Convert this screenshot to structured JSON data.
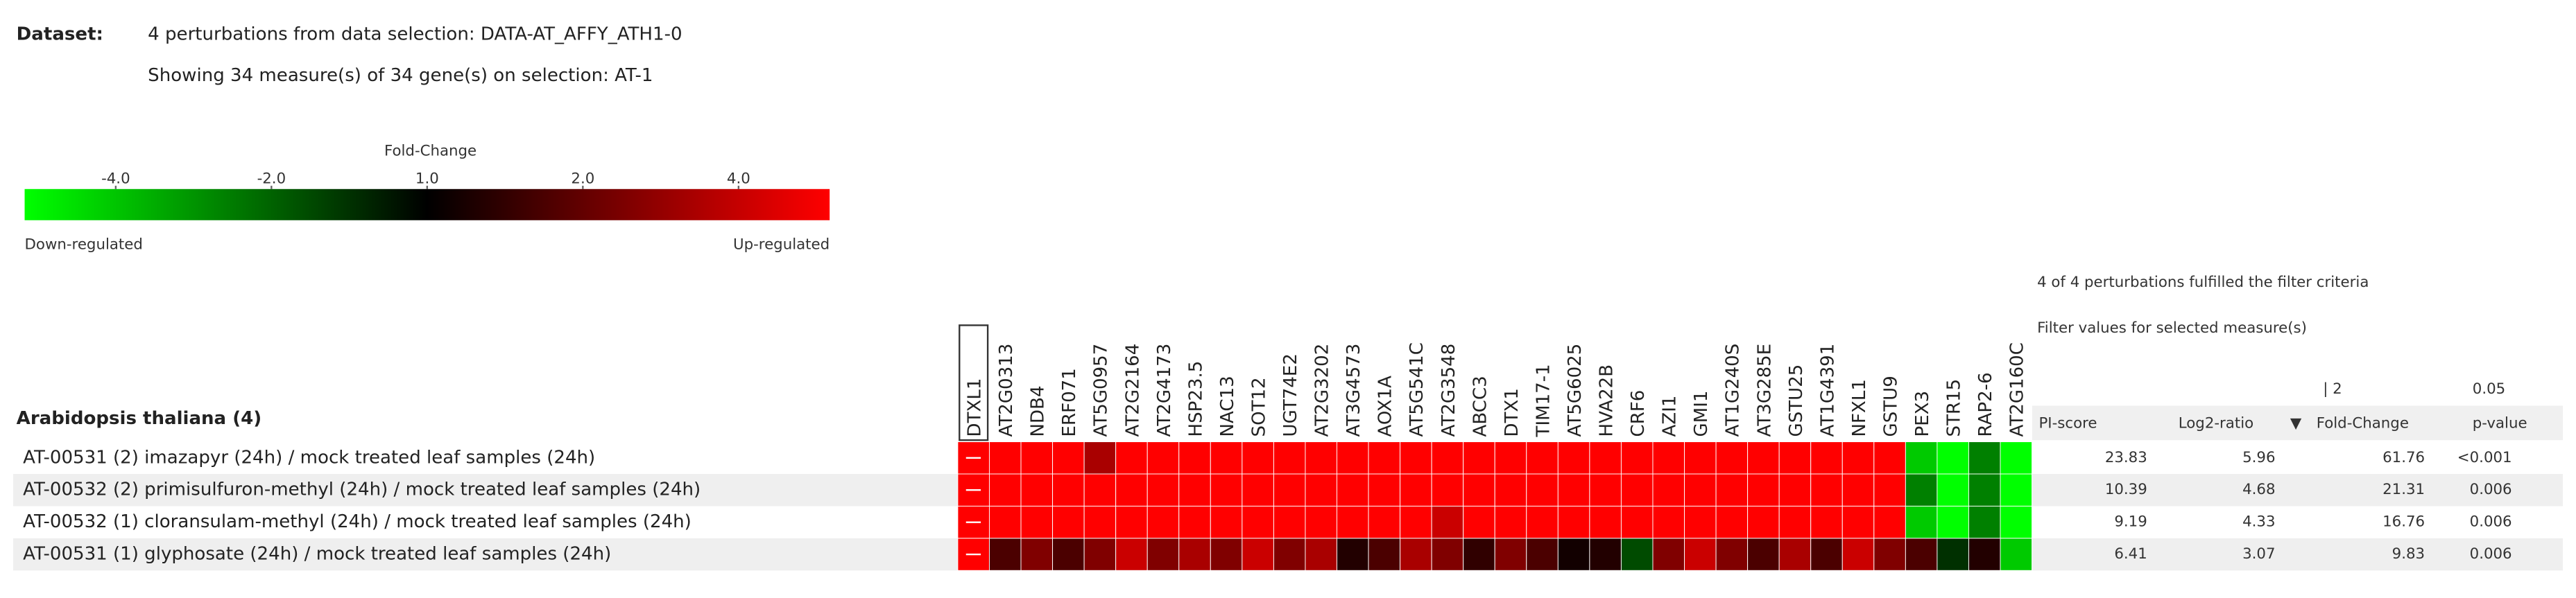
{
  "header": {
    "dataset_label": "Dataset:",
    "dataset_text": "4 perturbations from data selection: DATA-AT_AFFY_ATH1-0",
    "showing": "Showing 34 measure(s) of 34 gene(s) on selection: AT-1"
  },
  "legend": {
    "title": "Fold-Change",
    "lim": [
      -6,
      6
    ],
    "ticks": [
      {
        "value": -4,
        "label": "-4.0"
      },
      {
        "value": -2,
        "label": "-2.0"
      },
      {
        "value": 1,
        "label": "1.0"
      },
      {
        "value": 2,
        "label": "2.0"
      },
      {
        "value": 4,
        "label": "4.0"
      }
    ],
    "low_label": "Down-regulated",
    "high_label": "Up-regulated",
    "low_color": "#00ff00",
    "mid_color": "#000000",
    "high_color": "#ff0000"
  },
  "heatmap": {
    "group": "Arabidopsis thaliana (4)",
    "genes": [
      "DTXL1",
      "AT2G0313",
      "NDB4",
      "ERF071",
      "AT5G0957",
      "AT2G2164",
      "AT2G4173",
      "HSP23.5",
      "NAC13",
      "SOT12",
      "UGT74E2",
      "AT2G3202",
      "AT3G4573",
      "AOX1A",
      "AT5G541C",
      "AT2G3548",
      "ABCC3",
      "DTX1",
      "TIM17-1",
      "AT5G6025",
      "HVA22B",
      "CRF6",
      "AZI1",
      "GMI1",
      "AT1G240S",
      "AT3G285E",
      "GSTU25",
      "AT1G4391",
      "NFXL1",
      "GSTU9",
      "PEX3",
      "STR15",
      "RAP2-6",
      "AT2G160C"
    ],
    "rows": [
      {
        "label": "AT-00531 (2) imazapyr (24h) / mock treated leaf samples (24h)",
        "values": [
          6,
          6,
          5,
          4,
          2.5,
          5,
          6,
          6,
          6,
          6,
          6,
          5,
          6,
          6,
          6,
          4,
          6,
          6,
          6,
          6,
          6,
          6,
          4,
          6,
          5,
          6,
          6,
          6,
          4,
          5,
          -3,
          -5,
          -2,
          -4
        ]
      },
      {
        "label": "AT-00532 (2) primisulfuron-methyl (24h) / mock treated leaf samples (24h)",
        "values": [
          6,
          6,
          5,
          5,
          6,
          6,
          6,
          6,
          5,
          6,
          6,
          5,
          6,
          6,
          6,
          4,
          6,
          6,
          6,
          6,
          5,
          6,
          6,
          6,
          5,
          6,
          6,
          6,
          6,
          4,
          -2,
          -6,
          -2,
          -5
        ]
      },
      {
        "label": "AT-00532 (1) cloransulam-methyl (24h) / mock treated leaf samples (24h)",
        "values": [
          6,
          6,
          5,
          5,
          6,
          6,
          6,
          6,
          4,
          6,
          6,
          6,
          6,
          6,
          6,
          3,
          6,
          6,
          6,
          5,
          5,
          6,
          5,
          6,
          4,
          6,
          6,
          6,
          6,
          5,
          -3,
          -4,
          -2,
          -5
        ]
      },
      {
        "label": "AT-00531 (1) glyphosate (24h) / mock treated leaf samples (24h)",
        "values": [
          6,
          1.5,
          2,
          1.5,
          2,
          3,
          2,
          2.5,
          2,
          3,
          2,
          2.5,
          1.2,
          1.5,
          2.5,
          2,
          1.3,
          2,
          1.5,
          1.1,
          1.2,
          -1.5,
          2,
          3,
          2,
          1.5,
          2.5,
          1.5,
          3,
          2,
          1.5,
          -1.3,
          1.2,
          -3
        ]
      }
    ]
  },
  "table": {
    "status": "4 of 4 perturbations fulfilled the filter criteria",
    "filter_title": "Filter values for selected measure(s)",
    "filters": [
      "| 2",
      "0.05"
    ],
    "columns": [
      "PI-score",
      "Log2-ratio",
      "Fold-Change",
      "p-value"
    ],
    "sort_marker": "▼",
    "rows": [
      [
        "23.83",
        "5.96",
        "61.76",
        "<0.001"
      ],
      [
        "10.39",
        "4.68",
        "21.31",
        "0.006"
      ],
      [
        "9.19",
        "4.33",
        "16.76",
        "0.006"
      ],
      [
        "6.41",
        "3.07",
        "9.83",
        "0.006"
      ]
    ]
  }
}
